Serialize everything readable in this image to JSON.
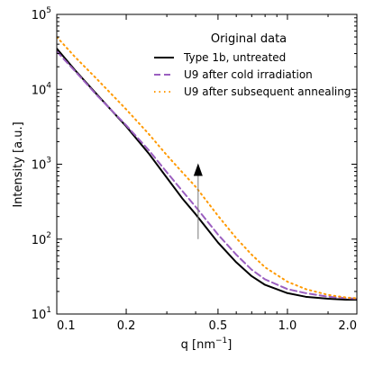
{
  "chart_data": {
    "type": "line",
    "xlabel": "q [nm",
    "xlabel_unit_sup": "−1",
    "xlabel_close": "]",
    "ylabel": "Intensity [a.u.]",
    "x_scale": "log",
    "y_scale": "log",
    "xlim": [
      0.1,
      2.0
    ],
    "ylim": [
      10,
      100000
    ],
    "x_ticks": [
      {
        "value": 0.1,
        "label": "0.1"
      },
      {
        "value": 0.2,
        "label": "0.2"
      },
      {
        "value": 0.5,
        "label": "0.5"
      },
      {
        "value": 1.0,
        "label": "1.0"
      },
      {
        "value": 2.0,
        "label": "2.0"
      }
    ],
    "y_ticks": [
      {
        "value": 10,
        "base": "10",
        "exp": "1"
      },
      {
        "value": 100,
        "base": "10",
        "exp": "2"
      },
      {
        "value": 1000,
        "base": "10",
        "exp": "3"
      },
      {
        "value": 10000,
        "base": "10",
        "exp": "4"
      },
      {
        "value": 100000,
        "base": "10",
        "exp": "5"
      }
    ],
    "legend": {
      "title": "Original data",
      "placement": "top-right"
    },
    "series": [
      {
        "name": "Type 1b, untreated",
        "color": "#000000",
        "dash": "solid",
        "x": [
          0.1,
          0.12,
          0.15,
          0.2,
          0.25,
          0.3,
          0.35,
          0.4,
          0.5,
          0.6,
          0.7,
          0.8,
          1.0,
          1.2,
          1.5,
          1.8,
          2.0
        ],
        "y": [
          35000,
          18000,
          8400,
          3200,
          1400,
          660,
          350,
          215,
          90,
          49,
          32,
          24.5,
          19,
          17,
          16,
          15.5,
          15.5
        ]
      },
      {
        "name": "U9 after cold irradiation",
        "color": "#9b5fc0",
        "dash": "dashed",
        "x": [
          0.1,
          0.12,
          0.15,
          0.2,
          0.25,
          0.3,
          0.35,
          0.4,
          0.5,
          0.6,
          0.7,
          0.8,
          1.0,
          1.2,
          1.5,
          1.8,
          2.0
        ],
        "y": [
          32000,
          17500,
          8200,
          3300,
          1550,
          780,
          440,
          270,
          115,
          62,
          39,
          29,
          21.5,
          19,
          17,
          16.3,
          16
        ]
      },
      {
        "name": "U9 after subsequent annealing",
        "color": "#ff9900",
        "dash": "dotted",
        "x": [
          0.1,
          0.12,
          0.15,
          0.2,
          0.25,
          0.3,
          0.35,
          0.4,
          0.5,
          0.6,
          0.7,
          0.8,
          1.0,
          1.2,
          1.5,
          1.8,
          2.0
        ],
        "y": [
          50000,
          27000,
          13500,
          5400,
          2550,
          1320,
          780,
          500,
          205,
          103,
          62,
          42,
          27,
          21.5,
          18,
          16.6,
          16.2
        ]
      }
    ],
    "annotations": [
      {
        "type": "arrow",
        "x": 0.41,
        "y_from": 100,
        "y_to": 1000,
        "color": "#000000"
      }
    ]
  }
}
